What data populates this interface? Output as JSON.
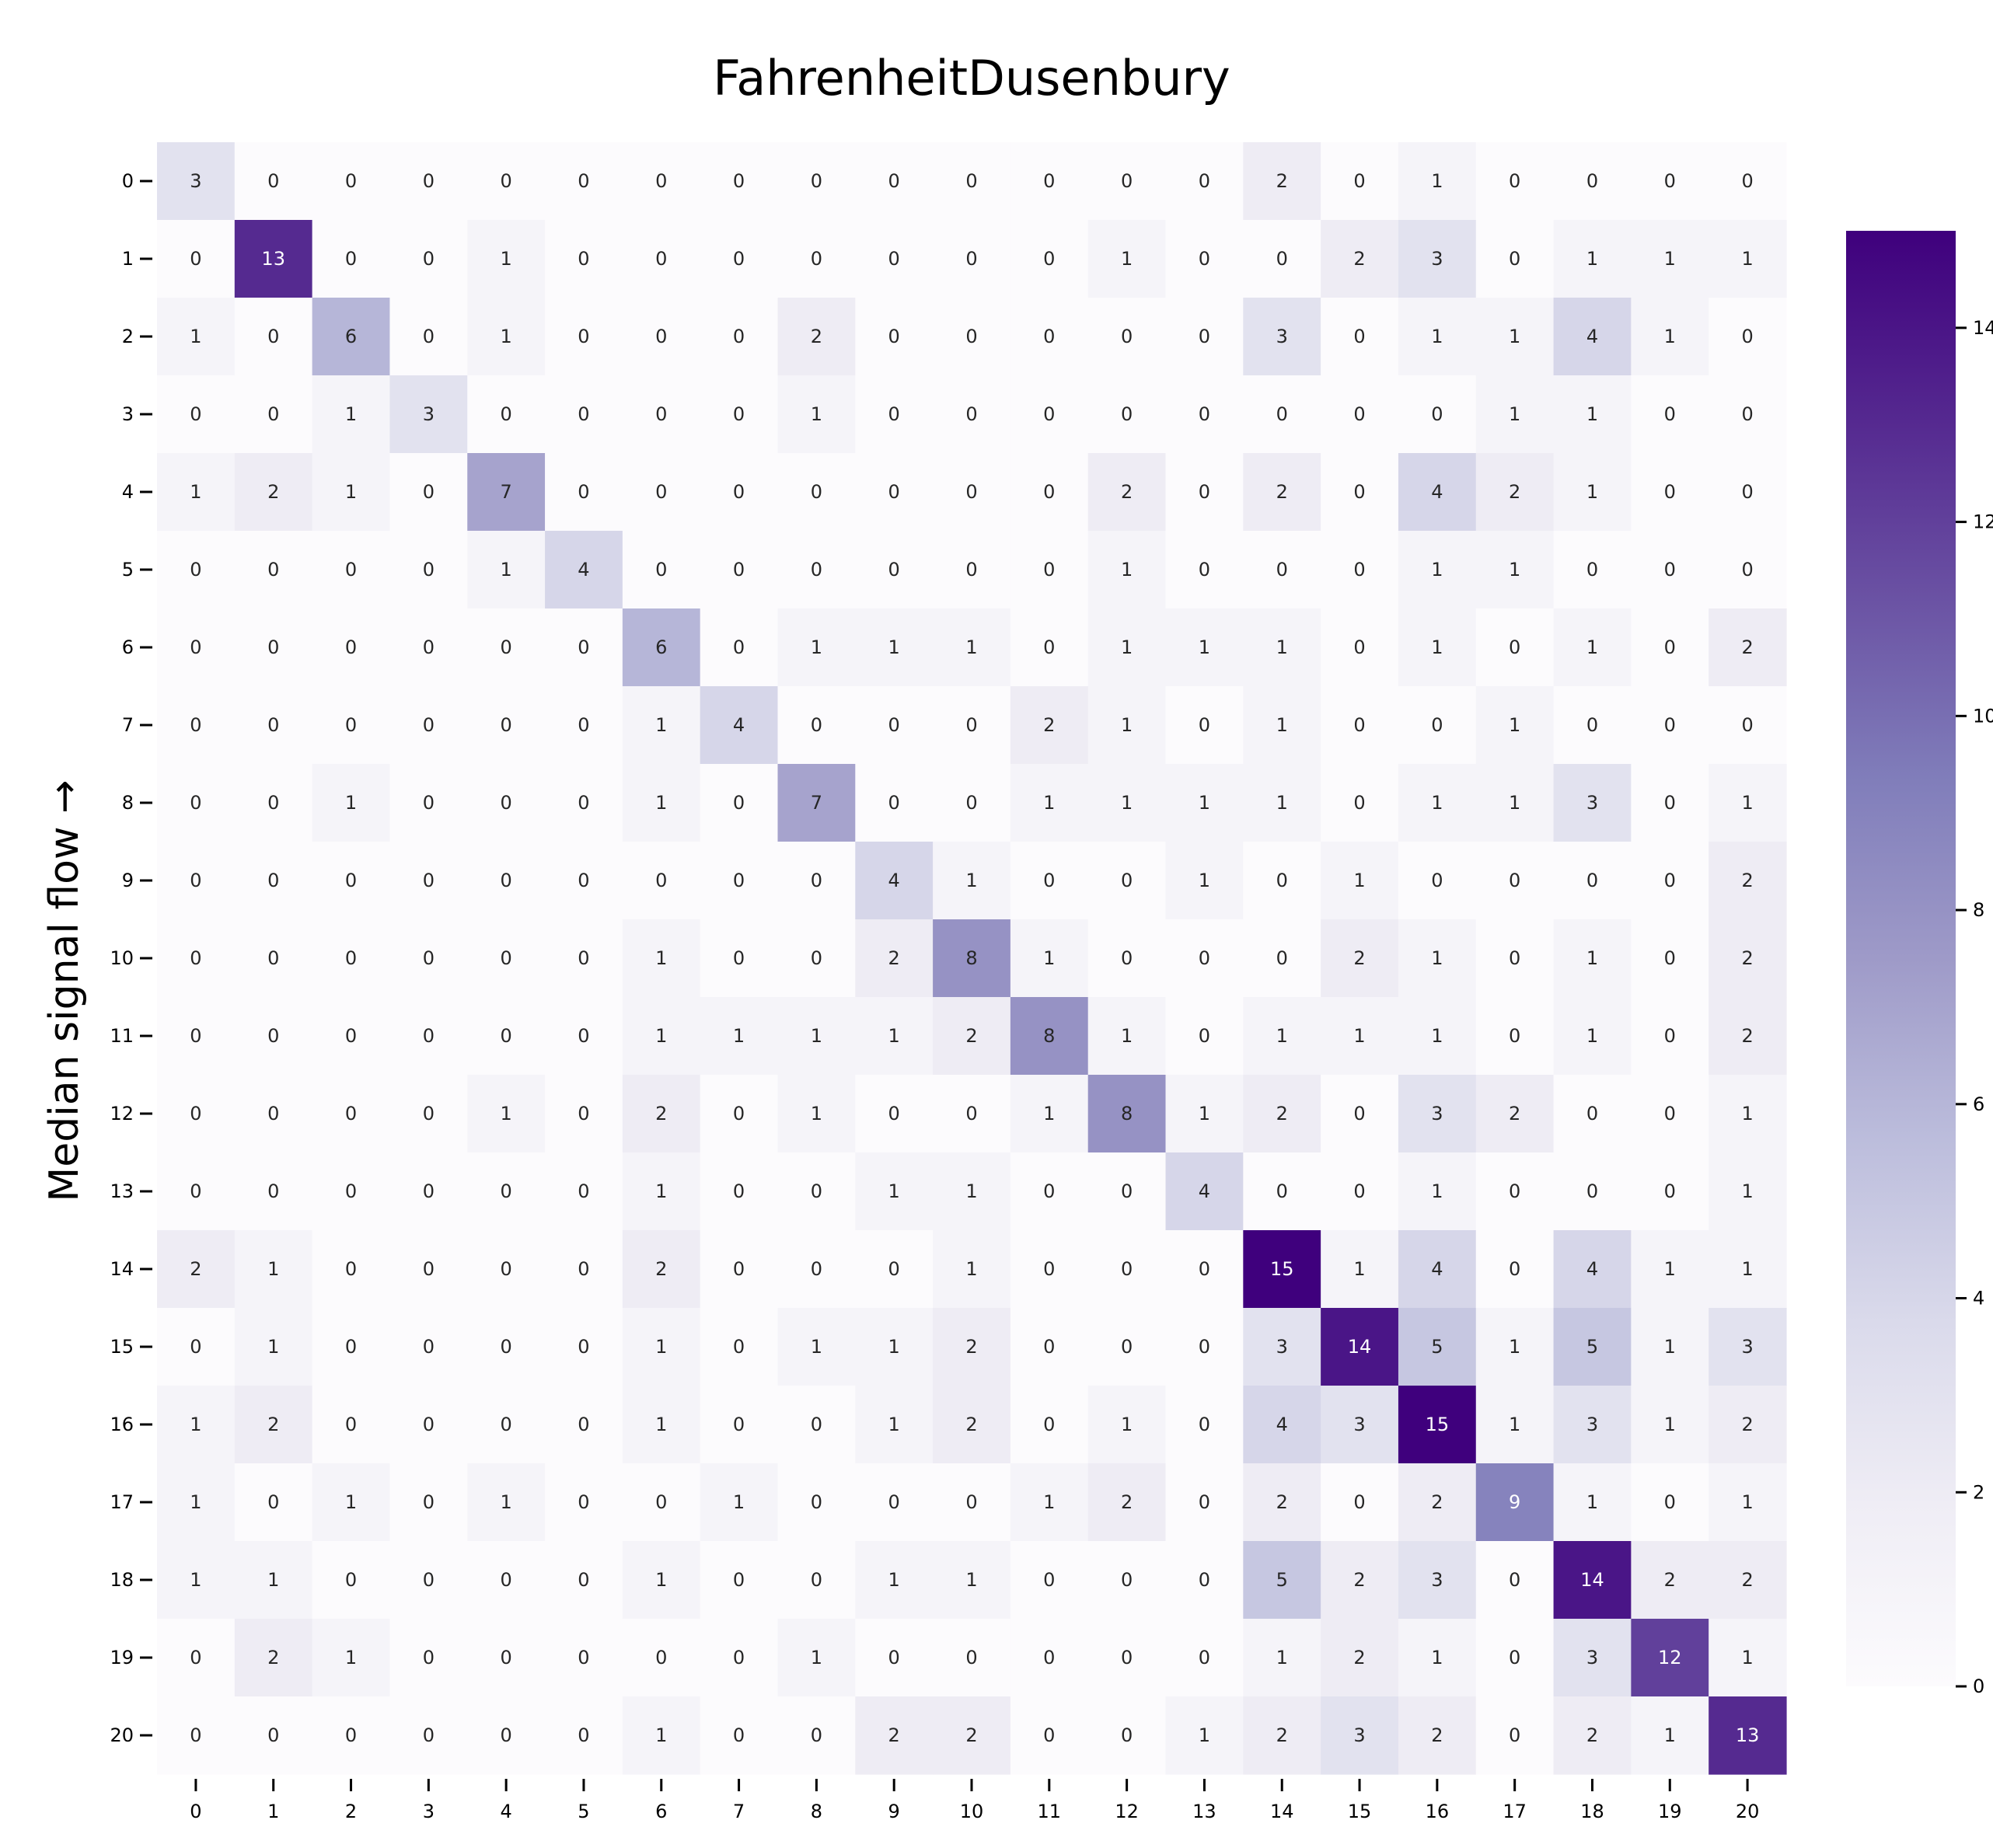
{
  "chart_data": {
    "type": "heatmap",
    "title": "FahrenheitDusenbury",
    "xlabel": "",
    "ylabel": "Median signal flow →",
    "x_categories": [
      "0",
      "1",
      "2",
      "3",
      "4",
      "5",
      "6",
      "7",
      "8",
      "9",
      "10",
      "11",
      "12",
      "13",
      "14",
      "15",
      "16",
      "17",
      "18",
      "19",
      "20"
    ],
    "y_categories": [
      "0",
      "1",
      "2",
      "3",
      "4",
      "5",
      "6",
      "7",
      "8",
      "9",
      "10",
      "11",
      "12",
      "13",
      "14",
      "15",
      "16",
      "17",
      "18",
      "19",
      "20"
    ],
    "values": [
      [
        3,
        0,
        0,
        0,
        0,
        0,
        0,
        0,
        0,
        0,
        0,
        0,
        0,
        0,
        2,
        0,
        1,
        0,
        0,
        0,
        0
      ],
      [
        0,
        13,
        0,
        0,
        1,
        0,
        0,
        0,
        0,
        0,
        0,
        0,
        1,
        0,
        0,
        2,
        3,
        0,
        1,
        1,
        1
      ],
      [
        1,
        0,
        6,
        0,
        1,
        0,
        0,
        0,
        2,
        0,
        0,
        0,
        0,
        0,
        3,
        0,
        1,
        1,
        4,
        1,
        0
      ],
      [
        0,
        0,
        1,
        3,
        0,
        0,
        0,
        0,
        1,
        0,
        0,
        0,
        0,
        0,
        0,
        0,
        0,
        1,
        1,
        0,
        0
      ],
      [
        1,
        2,
        1,
        0,
        7,
        0,
        0,
        0,
        0,
        0,
        0,
        0,
        2,
        0,
        2,
        0,
        4,
        2,
        1,
        0,
        0
      ],
      [
        0,
        0,
        0,
        0,
        1,
        4,
        0,
        0,
        0,
        0,
        0,
        0,
        1,
        0,
        0,
        0,
        1,
        1,
        0,
        0,
        0
      ],
      [
        0,
        0,
        0,
        0,
        0,
        0,
        6,
        0,
        1,
        1,
        1,
        0,
        1,
        1,
        1,
        0,
        1,
        0,
        1,
        0,
        2
      ],
      [
        0,
        0,
        0,
        0,
        0,
        0,
        1,
        4,
        0,
        0,
        0,
        2,
        1,
        0,
        1,
        0,
        0,
        1,
        0,
        0,
        0
      ],
      [
        0,
        0,
        1,
        0,
        0,
        0,
        1,
        0,
        7,
        0,
        0,
        1,
        1,
        1,
        1,
        0,
        1,
        1,
        3,
        0,
        1
      ],
      [
        0,
        0,
        0,
        0,
        0,
        0,
        0,
        0,
        0,
        4,
        1,
        0,
        0,
        1,
        0,
        1,
        0,
        0,
        0,
        0,
        2
      ],
      [
        0,
        0,
        0,
        0,
        0,
        0,
        1,
        0,
        0,
        2,
        8,
        1,
        0,
        0,
        0,
        2,
        1,
        0,
        1,
        0,
        2
      ],
      [
        0,
        0,
        0,
        0,
        0,
        0,
        1,
        1,
        1,
        1,
        2,
        8,
        1,
        0,
        1,
        1,
        1,
        0,
        1,
        0,
        2
      ],
      [
        0,
        0,
        0,
        0,
        1,
        0,
        2,
        0,
        1,
        0,
        0,
        1,
        8,
        1,
        2,
        0,
        3,
        2,
        0,
        0,
        1
      ],
      [
        0,
        0,
        0,
        0,
        0,
        0,
        1,
        0,
        0,
        1,
        1,
        0,
        0,
        4,
        0,
        0,
        1,
        0,
        0,
        0,
        1
      ],
      [
        2,
        1,
        0,
        0,
        0,
        0,
        2,
        0,
        0,
        0,
        1,
        0,
        0,
        0,
        15,
        1,
        4,
        0,
        4,
        1,
        1
      ],
      [
        0,
        1,
        0,
        0,
        0,
        0,
        1,
        0,
        1,
        1,
        2,
        0,
        0,
        0,
        3,
        14,
        5,
        1,
        5,
        1,
        3
      ],
      [
        1,
        2,
        0,
        0,
        0,
        0,
        1,
        0,
        0,
        1,
        2,
        0,
        1,
        0,
        4,
        3,
        15,
        1,
        3,
        1,
        2
      ],
      [
        1,
        0,
        1,
        0,
        1,
        0,
        0,
        1,
        0,
        0,
        0,
        1,
        2,
        0,
        2,
        0,
        2,
        9,
        1,
        0,
        1
      ],
      [
        1,
        1,
        0,
        0,
        0,
        0,
        1,
        0,
        0,
        1,
        1,
        0,
        0,
        0,
        5,
        2,
        3,
        0,
        14,
        2,
        2
      ],
      [
        0,
        2,
        1,
        0,
        0,
        0,
        0,
        0,
        1,
        0,
        0,
        0,
        0,
        0,
        1,
        2,
        1,
        0,
        3,
        12,
        1
      ],
      [
        0,
        0,
        0,
        0,
        0,
        0,
        1,
        0,
        0,
        2,
        2,
        0,
        0,
        1,
        2,
        3,
        2,
        0,
        2,
        1,
        13
      ]
    ],
    "colormap": "Purples",
    "vmin": 0,
    "vmax": 15,
    "colorbar_ticks": [
      0,
      2,
      4,
      6,
      8,
      10,
      12,
      14
    ],
    "colorbar_ticklabels": [
      "0",
      "2",
      "4",
      "6",
      "8",
      "10",
      "12",
      "14"
    ],
    "grid": false,
    "colorbar_position": "right"
  }
}
